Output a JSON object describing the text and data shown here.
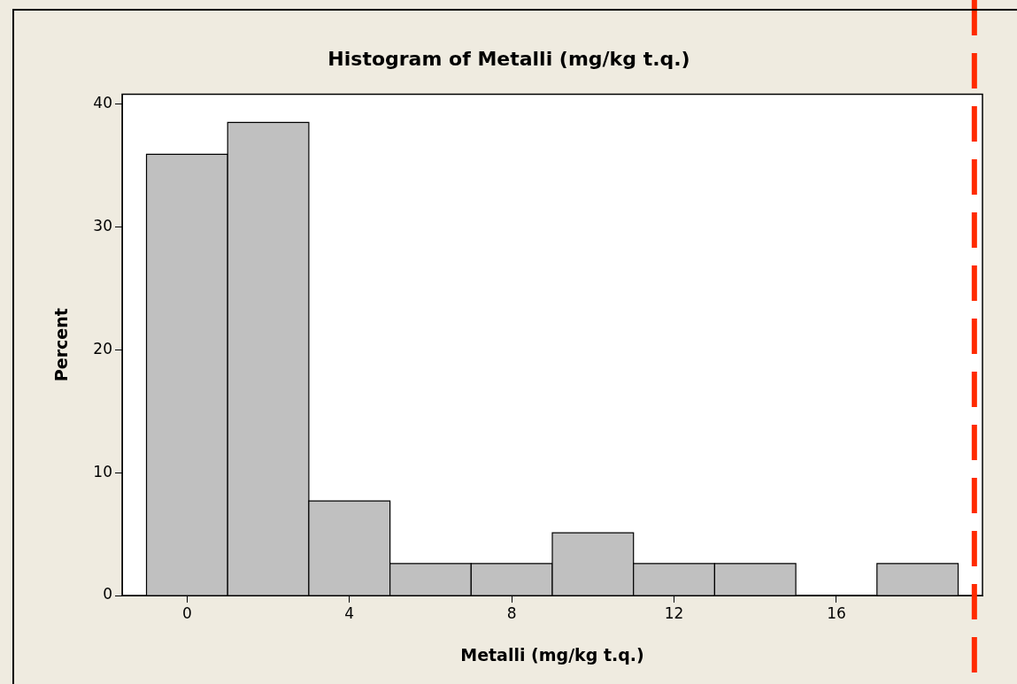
{
  "chart_data": {
    "type": "histogram",
    "title": "Histogram of Metalli (mg/kg t.q.)",
    "xlabel": "Metalli (mg/kg t.q.)",
    "ylabel": "Percent",
    "bins": [
      -1,
      1,
      3,
      5,
      7,
      9,
      11,
      13,
      15,
      17,
      19
    ],
    "values": [
      35.9,
      38.5,
      7.7,
      2.6,
      2.6,
      5.1,
      2.6,
      2.6,
      0,
      2.6
    ],
    "color": "#c0c0c0",
    "xlim": [
      -1.6,
      19.6
    ],
    "xticks": [
      0,
      4,
      8,
      12,
      16
    ],
    "ylim": [
      0,
      40.8
    ],
    "yticks": [
      0,
      10,
      20,
      30,
      40
    ],
    "ref_lines": [
      {
        "axis": "x",
        "value": 19.4,
        "color": "#ff2a00",
        "line_style": "dashed"
      }
    ],
    "grid": false,
    "legend": false
  }
}
